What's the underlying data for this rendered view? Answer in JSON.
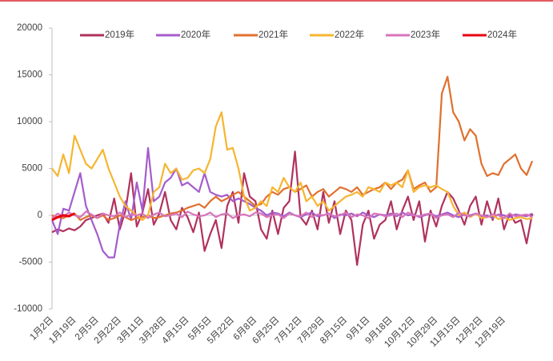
{
  "chart_data": {
    "type": "line",
    "categories": [
      "1月2日",
      null,
      null,
      null,
      "1月19日",
      null,
      null,
      null,
      "2月5日",
      null,
      null,
      null,
      "2月22日",
      null,
      null,
      null,
      "3月11日",
      null,
      null,
      null,
      "3月28日",
      null,
      null,
      null,
      "4月15日",
      null,
      null,
      null,
      "5月5日",
      null,
      null,
      null,
      "5月22日",
      null,
      null,
      null,
      "6月8日",
      null,
      null,
      null,
      "6月25日",
      null,
      null,
      null,
      "7月12日",
      null,
      null,
      null,
      "7月29日",
      null,
      null,
      null,
      "8月15日",
      null,
      null,
      null,
      "9月1日",
      null,
      null,
      null,
      "9月18日",
      null,
      null,
      null,
      "10月12日",
      null,
      null,
      null,
      "10月29日",
      null,
      null,
      null,
      "11月15日",
      null,
      null,
      null,
      "12月2日",
      null,
      null,
      null,
      "12月19日",
      null,
      null,
      null,
      null,
      null
    ],
    "series": [
      {
        "name": "2019年",
        "color": "#b0325e",
        "values": [
          -1800,
          -1500,
          -1700,
          -1400,
          -1600,
          -1200,
          -500,
          -300,
          0,
          200,
          -800,
          1800,
          -1500,
          500,
          4500,
          -1200,
          300,
          2800,
          -1000,
          200,
          2500,
          -500,
          -1500,
          800,
          -200,
          -1800,
          300,
          -3800,
          -2000,
          -500,
          -3500,
          1000,
          2500,
          -800,
          4500,
          2000,
          1500,
          -1500,
          -2500,
          500,
          -2000,
          800,
          1500,
          6800,
          -200,
          -1000,
          500,
          -1500,
          2500,
          -800,
          1500,
          -2000,
          500,
          -500,
          -5300,
          -1000,
          500,
          -2500,
          -1000,
          -500,
          1500,
          -1500,
          500,
          2000,
          -500,
          1500,
          -2800,
          500,
          -1200,
          1000,
          2500,
          1800,
          500,
          -1000,
          1000,
          2000,
          -1000,
          1500,
          -500,
          1800,
          -1500,
          200,
          -800,
          -500,
          -3000,
          200
        ]
      },
      {
        "name": "2020年",
        "color": "#a55ccc",
        "values": [
          -500,
          -2000,
          700,
          500,
          2500,
          4500,
          1000,
          -500,
          -2000,
          -3800,
          -4500,
          -4500,
          -1000,
          1500,
          -500,
          3500,
          500,
          7200,
          1500,
          2000,
          3500,
          4000,
          5000,
          3200,
          3500,
          3000,
          2500,
          4500,
          2500,
          2200,
          2000,
          2200,
          1500,
          1800,
          1500,
          1200,
          800,
          500,
          0,
          300,
          200,
          -100,
          300,
          0,
          -200,
          100,
          300,
          -100,
          0,
          200,
          -300,
          100,
          0,
          200,
          -100,
          300,
          0,
          -200,
          100,
          0,
          200,
          -100,
          300,
          0,
          100,
          -200,
          0,
          200,
          -100,
          100,
          300,
          0,
          -200,
          100,
          0,
          200,
          -100,
          0,
          -300,
          100,
          0,
          -200,
          100,
          0,
          -100,
          200
        ]
      },
      {
        "name": "2021年",
        "color": "#e0702e",
        "values": [
          0,
          -200,
          -300,
          0,
          200,
          -500,
          -200,
          0,
          -300,
          0,
          -500,
          -300,
          0,
          -200,
          -500,
          -300,
          -200,
          0,
          -300,
          -200,
          0,
          200,
          300,
          500,
          800,
          1000,
          1200,
          800,
          1500,
          2000,
          1500,
          1800,
          2200,
          2500,
          2000,
          1500,
          1000,
          1200,
          2000,
          2500,
          2200,
          2800,
          3000,
          2500,
          2800,
          3200,
          2000,
          2500,
          2800,
          2000,
          2500,
          3000,
          2800,
          2500,
          3000,
          2200,
          2500,
          2800,
          3000,
          3500,
          2800,
          3500,
          3800,
          4800,
          2800,
          3200,
          3500,
          2500,
          3000,
          13000,
          14800,
          11000,
          10000,
          8000,
          9200,
          8500,
          5500,
          4200,
          4500,
          4300,
          5500,
          6000,
          6500,
          5000,
          4300,
          5800
        ]
      },
      {
        "name": "2022年",
        "color": "#f6b531",
        "values": [
          5000,
          4200,
          6500,
          4500,
          8500,
          7000,
          5500,
          5000,
          6000,
          7000,
          5000,
          3500,
          2000,
          1000,
          500,
          0,
          -500,
          0,
          2500,
          3000,
          5500,
          4500,
          5000,
          3800,
          4000,
          4800,
          5000,
          4500,
          6000,
          9500,
          11000,
          7000,
          7200,
          5000,
          2000,
          500,
          800,
          1500,
          1000,
          3000,
          2500,
          4000,
          3000,
          2500,
          3500,
          1500,
          2000,
          1000,
          1500,
          500,
          1000,
          1500,
          2000,
          2200,
          2500,
          2000,
          3000,
          2800,
          2500,
          3500,
          3200,
          3500,
          3000,
          4800,
          2500,
          3000,
          3200,
          3000,
          3200,
          2800,
          2500,
          1000,
          0,
          300,
          -200,
          200,
          -300,
          -200,
          0,
          -400,
          -200,
          -500,
          -300,
          -200,
          -400,
          -300
        ]
      },
      {
        "name": "2023年",
        "color": "#d874bb",
        "values": [
          -300,
          200,
          -100,
          300,
          0,
          -200,
          400,
          100,
          -300,
          200,
          0,
          -100,
          300,
          -200,
          100,
          0,
          200,
          -300,
          100,
          300,
          -100,
          0,
          200,
          -200,
          400,
          100,
          -100,
          0,
          300,
          -200,
          100,
          200,
          -300,
          0,
          100,
          -100,
          300,
          200,
          -200,
          0,
          100,
          -300,
          200,
          0,
          -100,
          300,
          -200,
          100,
          0,
          200,
          -100,
          0,
          300,
          -200,
          100,
          0,
          -300,
          200,
          100,
          -100,
          0,
          200,
          -200,
          300,
          0,
          -100,
          100,
          200,
          -300,
          0,
          100,
          -200,
          300,
          0,
          -100,
          200,
          0,
          -200,
          100,
          0,
          -300,
          200,
          -100,
          0,
          100,
          -200
        ]
      },
      {
        "name": "2024年",
        "color": "#e8000f",
        "values": [
          -500,
          -200,
          0,
          -100,
          200,
          null,
          null,
          null,
          null,
          null,
          null,
          null,
          null,
          null,
          null,
          null,
          null,
          null,
          null,
          null,
          null,
          null,
          null,
          null,
          null,
          null,
          null,
          null,
          null,
          null,
          null,
          null,
          null,
          null,
          null,
          null,
          null,
          null,
          null,
          null,
          null,
          null,
          null,
          null,
          null,
          null,
          null,
          null,
          null,
          null,
          null,
          null,
          null,
          null,
          null,
          null,
          null,
          null,
          null,
          null,
          null,
          null,
          null,
          null,
          null,
          null,
          null,
          null,
          null,
          null,
          null,
          null,
          null,
          null,
          null,
          null,
          null,
          null,
          null,
          null,
          null,
          null,
          null,
          null,
          null,
          null
        ]
      }
    ],
    "ylim": [
      -10000,
      20000
    ],
    "yticks": [
      -10000,
      -5000,
      0,
      5000,
      10000,
      15000,
      20000
    ],
    "grid": false,
    "legend": "top"
  }
}
